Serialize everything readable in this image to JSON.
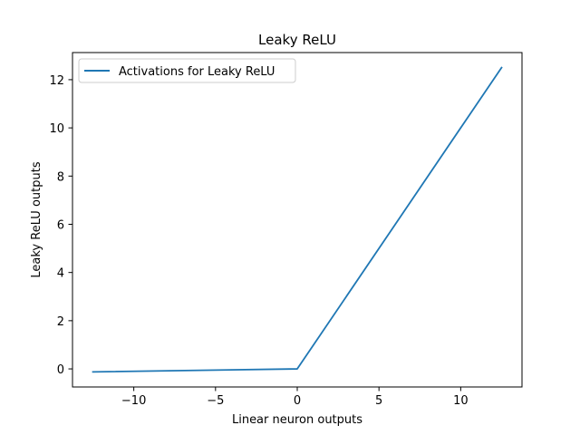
{
  "chart_data": {
    "type": "line",
    "title": "Leaky ReLU",
    "xlabel": "Linear neuron outputs",
    "ylabel": "Leaky ReLU outputs",
    "xlim": [
      -13.75,
      13.75
    ],
    "ylim": [
      -0.75,
      13.125
    ],
    "xticks": [
      -10,
      -5,
      0,
      5,
      10
    ],
    "xtick_labels": [
      "−10",
      "−5",
      "0",
      "5",
      "10"
    ],
    "yticks": [
      0,
      2,
      4,
      6,
      8,
      10,
      12
    ],
    "ytick_labels": [
      "0",
      "2",
      "4",
      "6",
      "8",
      "10",
      "12"
    ],
    "grid": false,
    "legend_placement": "upper-left",
    "series": [
      {
        "name": "Activations for Leaky ReLU",
        "color": "#1f77b4",
        "x": [
          -12.5,
          0,
          12.5
        ],
        "y": [
          -0.125,
          0,
          12.5
        ]
      }
    ]
  }
}
